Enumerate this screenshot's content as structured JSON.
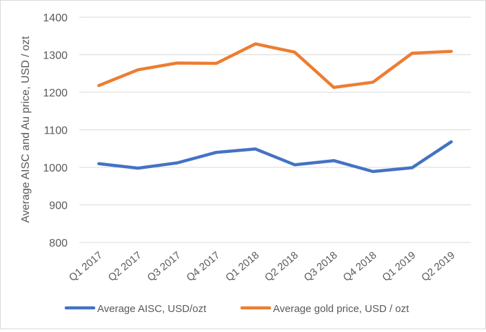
{
  "chart_data": {
    "type": "line",
    "title": "",
    "ylabel": "Average AISC and Au price, USD / ozt",
    "xlabel": "",
    "categories": [
      "Q1 2017",
      "Q2 2017",
      "Q3 2017",
      "Q4 2017",
      "Q1 2018",
      "Q2 2018",
      "Q3 2018",
      "Q4 2018",
      "Q1 2019",
      "Q2 2019"
    ],
    "ylim": [
      800,
      1400
    ],
    "yticks": [
      800,
      900,
      1000,
      1100,
      1200,
      1300,
      1400
    ],
    "grid": true,
    "legend_position": "bottom",
    "series": [
      {
        "name": "Average AISC, USD/ozt",
        "color": "#4472c4",
        "values": [
          1010,
          998,
          1012,
          1040,
          1049,
          1007,
          1018,
          989,
          999,
          1068
        ]
      },
      {
        "name": "Average gold price, USD / ozt",
        "color": "#ed7d31",
        "values": [
          1218,
          1260,
          1278,
          1277,
          1329,
          1307,
          1213,
          1227,
          1304,
          1309
        ]
      }
    ]
  }
}
